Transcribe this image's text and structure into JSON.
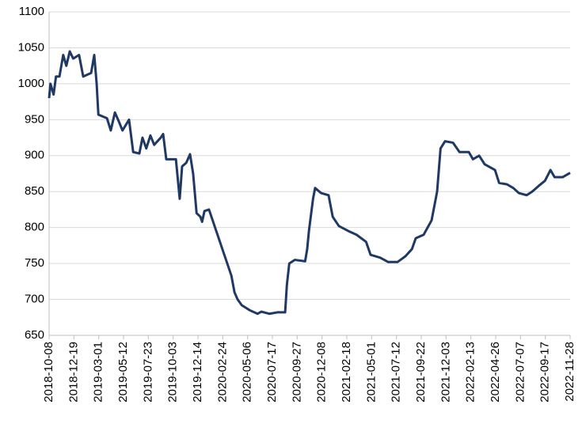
{
  "chart_data": {
    "type": "line",
    "color": "#1f3864",
    "grid": true,
    "ylim": [
      650,
      1100
    ],
    "yticks": [
      650,
      700,
      750,
      800,
      850,
      900,
      950,
      1000,
      1050,
      1100
    ],
    "xlim": [
      "2018-10-08",
      "2022-11-28"
    ],
    "xticks": [
      "2018-10-08",
      "2018-12-19",
      "2019-03-01",
      "2019-05-12",
      "2019-07-23",
      "2019-10-03",
      "2019-12-14",
      "2020-02-24",
      "2020-05-06",
      "2020-07-17",
      "2020-09-27",
      "2020-12-08",
      "2021-02-18",
      "2021-05-01",
      "2021-07-12",
      "2021-09-22",
      "2021-12-03",
      "2022-02-13",
      "2022-04-26",
      "2022-07-07",
      "2022-09-17",
      "2022-11-28"
    ],
    "x": [
      "2018-10-08",
      "2018-10-12",
      "2018-10-21",
      "2018-10-28",
      "2018-11-07",
      "2018-11-18",
      "2018-11-27",
      "2018-12-07",
      "2018-12-17",
      "2019-01-03",
      "2019-01-15",
      "2019-02-07",
      "2019-02-16",
      "2019-02-23",
      "2019-02-28",
      "2019-03-25",
      "2019-04-05",
      "2019-04-17",
      "2019-04-28",
      "2019-05-09",
      "2019-05-28",
      "2019-06-09",
      "2019-06-27",
      "2019-07-06",
      "2019-07-17",
      "2019-07-29",
      "2019-08-09",
      "2019-08-28",
      "2019-09-04",
      "2019-09-13",
      "2019-10-11",
      "2019-10-22",
      "2019-10-29",
      "2019-11-10",
      "2019-11-21",
      "2019-11-30",
      "2019-12-10",
      "2019-12-21",
      "2019-12-26",
      "2020-01-02",
      "2020-01-15",
      "2020-03-20",
      "2020-03-29",
      "2020-04-07",
      "2020-04-19",
      "2020-05-12",
      "2020-06-04",
      "2020-06-15",
      "2020-07-08",
      "2020-07-31",
      "2020-08-23",
      "2020-08-28",
      "2020-09-04",
      "2020-09-20",
      "2020-10-20",
      "2020-10-26",
      "2020-10-31",
      "2020-11-12",
      "2020-11-18",
      "2020-12-05",
      "2020-12-27",
      "2021-01-08",
      "2021-01-26",
      "2021-02-23",
      "2021-03-18",
      "2021-04-15",
      "2021-04-28",
      "2021-05-26",
      "2021-06-18",
      "2021-07-15",
      "2021-08-07",
      "2021-08-26",
      "2021-09-06",
      "2021-09-29",
      "2021-10-22",
      "2021-11-07",
      "2021-11-17",
      "2021-11-30",
      "2021-12-23",
      "2022-01-11",
      "2022-02-07",
      "2022-02-19",
      "2022-03-09",
      "2022-03-25",
      "2022-04-24",
      "2022-05-06",
      "2022-05-29",
      "2022-06-16",
      "2022-07-02",
      "2022-07-25",
      "2022-08-10",
      "2022-08-29",
      "2022-09-16",
      "2022-10-02",
      "2022-10-14",
      "2022-11-06",
      "2022-11-17",
      "2022-11-28"
    ],
    "values": [
      980,
      1000,
      985,
      1010,
      1010,
      1040,
      1025,
      1045,
      1035,
      1040,
      1010,
      1015,
      1040,
      1000,
      957,
      952,
      935,
      960,
      948,
      935,
      950,
      905,
      903,
      925,
      910,
      928,
      915,
      925,
      930,
      895,
      895,
      840,
      885,
      890,
      902,
      875,
      820,
      815,
      808,
      823,
      825,
      733,
      710,
      700,
      692,
      685,
      680,
      683,
      680,
      682,
      682,
      720,
      750,
      755,
      753,
      770,
      795,
      840,
      855,
      848,
      845,
      815,
      802,
      795,
      790,
      780,
      762,
      758,
      752,
      752,
      760,
      770,
      785,
      790,
      810,
      850,
      910,
      920,
      918,
      905,
      905,
      895,
      900,
      888,
      880,
      862,
      860,
      855,
      848,
      845,
      850,
      858,
      865,
      880,
      870,
      870,
      873,
      876
    ]
  }
}
